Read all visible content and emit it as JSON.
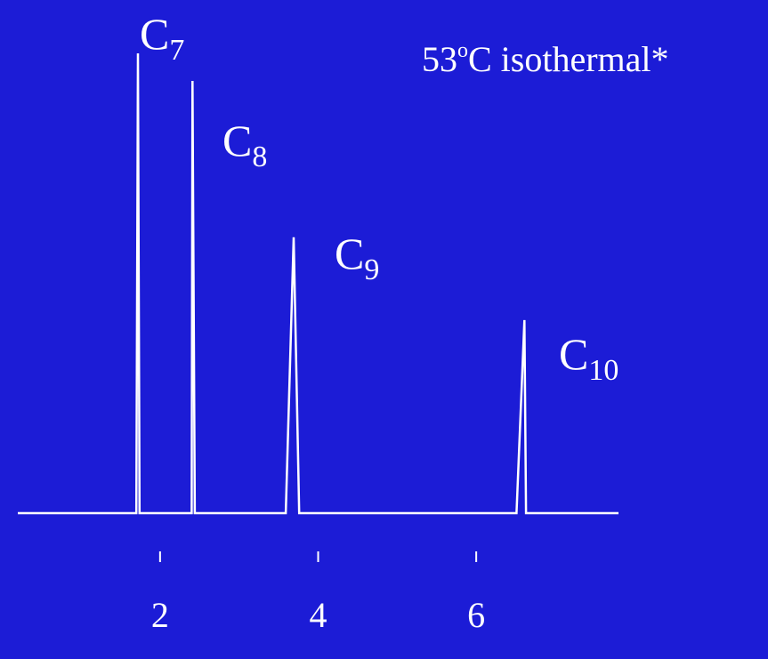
{
  "chart_data": {
    "type": "line",
    "title": {
      "pre": "53",
      "sup": "o",
      "post": "C isothermal*"
    },
    "x": [
      0.2,
      1.7,
      1.72,
      1.74,
      2.4,
      2.41,
      2.44,
      3.59,
      3.69,
      3.76,
      6.51,
      6.61,
      6.63,
      7.8
    ],
    "values": [
      0,
      0,
      100,
      0,
      0,
      94,
      0,
      0,
      60,
      0,
      0,
      42,
      0,
      0
    ],
    "color": "#ffffff",
    "xlim": [
      0.2,
      7.8
    ],
    "xticks": [
      2,
      4,
      6
    ],
    "ylim": [
      0,
      100
    ],
    "annotations": [
      {
        "base": "C",
        "sub": "7"
      },
      {
        "base": "C",
        "sub": "8"
      },
      {
        "base": "C",
        "sub": "9"
      },
      {
        "base": "C",
        "sub": "10"
      }
    ]
  }
}
